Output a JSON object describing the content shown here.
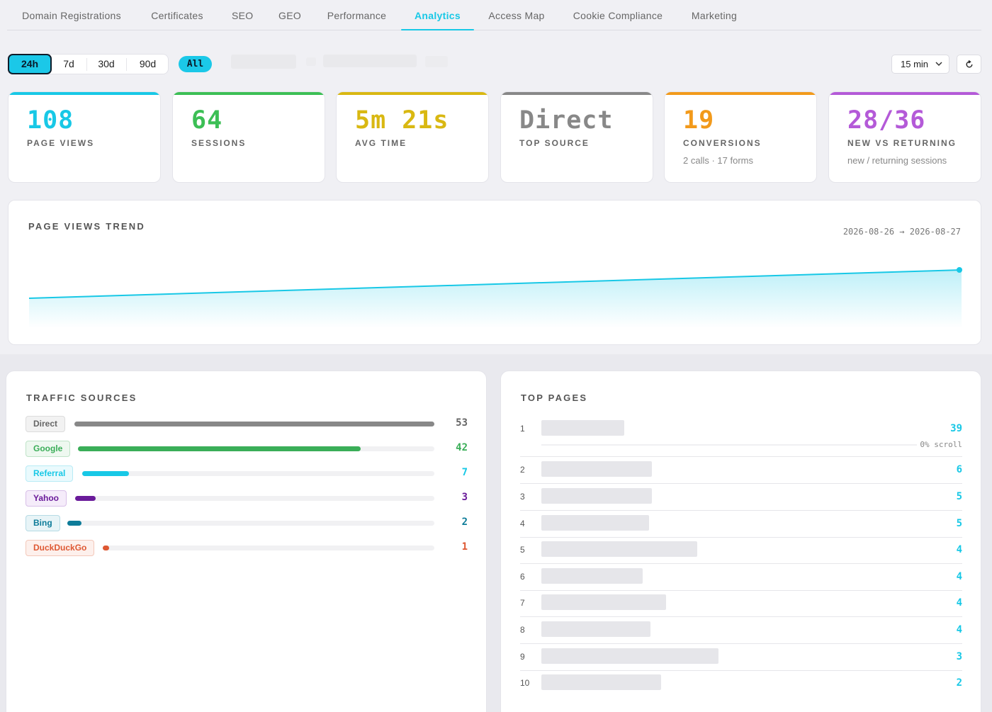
{
  "tabs": [
    {
      "label": "Domain Registrations",
      "active": false
    },
    {
      "label": "Certificates",
      "active": false
    },
    {
      "label": "SEO",
      "active": false
    },
    {
      "label": "GEO",
      "active": false
    },
    {
      "label": "Performance",
      "active": false
    },
    {
      "label": "Analytics",
      "active": true
    },
    {
      "label": "Access Map",
      "active": false
    },
    {
      "label": "Cookie Compliance",
      "active": false
    },
    {
      "label": "Marketing",
      "active": false
    }
  ],
  "toolbar": {
    "ranges": [
      "24h",
      "7d",
      "30d",
      "90d"
    ],
    "active_range": "24h",
    "filter_label": "All",
    "interval_value": "15 min",
    "refresh_icon": "refresh-icon"
  },
  "stats": [
    {
      "value": "108",
      "label": "PAGE VIEWS",
      "sub": "",
      "color": "#18c8e6"
    },
    {
      "value": "64",
      "label": "SESSIONS",
      "sub": "",
      "color": "#3cbf55"
    },
    {
      "value": "5m 21s",
      "label": "AVG TIME",
      "sub": "",
      "color": "#d9b812"
    },
    {
      "value": "Direct",
      "label": "TOP SOURCE",
      "sub": "",
      "color": "#888888"
    },
    {
      "value": "19",
      "label": "CONVERSIONS",
      "sub": "2 calls · 17 forms",
      "color": "#f29a1b"
    },
    {
      "value": "28/36",
      "label": "NEW VS RETURNING",
      "sub": "new / returning sessions",
      "color": "#b45ad8"
    }
  ],
  "trend": {
    "title": "PAGE VIEWS TREND",
    "range": "2026-08-26 → 2026-08-27",
    "color": "#18c8e6"
  },
  "chart_data": {
    "type": "area",
    "title": "PAGE VIEWS TREND",
    "x": [
      "2026-08-26",
      "2026-08-27"
    ],
    "series": [
      {
        "values": [
          0,
          108
        ]
      }
    ]
  },
  "traffic_sources": {
    "title": "TRAFFIC SOURCES",
    "max": 53,
    "items": [
      {
        "name": "Direct",
        "count": 53,
        "color": "#888888",
        "bg": "#f2f2f2",
        "border": "#dcdcdc",
        "text": "#666666"
      },
      {
        "name": "Google",
        "count": 42,
        "color": "#3aae58",
        "bg": "#eef8f0",
        "border": "#bfe3c8",
        "text": "#3aae58"
      },
      {
        "name": "Referral",
        "count": 7,
        "color": "#18c8e6",
        "bg": "#eafafd",
        "border": "#b8ebf5",
        "text": "#18c8e6"
      },
      {
        "name": "Yahoo",
        "count": 3,
        "color": "#6a1b9a",
        "bg": "#f5ecfa",
        "border": "#d8bfe8",
        "text": "#6a1b9a"
      },
      {
        "name": "Bing",
        "count": 2,
        "color": "#0e7c99",
        "bg": "#e8f4f7",
        "border": "#b6dbe5",
        "text": "#0e7c99"
      },
      {
        "name": "DuckDuckGo",
        "count": 1,
        "color": "#de5833",
        "bg": "#fdf0ec",
        "border": "#f3c8ba",
        "text": "#de5833"
      }
    ]
  },
  "top_pages": {
    "title": "TOP PAGES",
    "first_sub": "0% scroll",
    "items": [
      {
        "rank": "1",
        "count": "39"
      },
      {
        "rank": "2",
        "count": "6"
      },
      {
        "rank": "3",
        "count": "5"
      },
      {
        "rank": "4",
        "count": "5"
      },
      {
        "rank": "5",
        "count": "4"
      },
      {
        "rank": "6",
        "count": "4"
      },
      {
        "rank": "7",
        "count": "4"
      },
      {
        "rank": "8",
        "count": "4"
      },
      {
        "rank": "9",
        "count": "3"
      },
      {
        "rank": "10",
        "count": "2"
      }
    ]
  }
}
